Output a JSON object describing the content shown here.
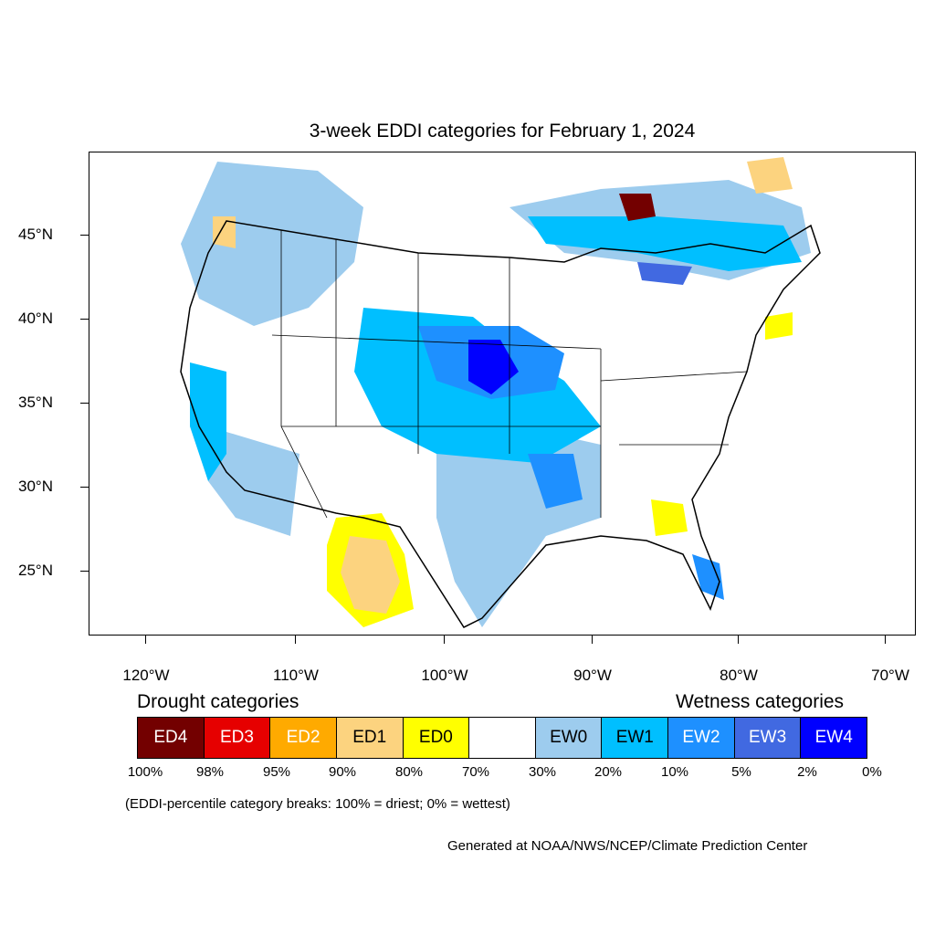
{
  "title": "3-week EDDI categories for February 1, 2024",
  "latitude_labels": [
    "45°N",
    "40°N",
    "35°N",
    "30°N",
    "25°N"
  ],
  "longitude_labels": [
    "120°W",
    "110°W",
    "100°W",
    "90°W",
    "80°W",
    "70°W"
  ],
  "legend": {
    "drought_heading": "Drought categories",
    "wetness_heading": "Wetness categories",
    "categories": [
      {
        "label": "ED4",
        "color": "#730000",
        "text_color": "#ffffff"
      },
      {
        "label": "ED3",
        "color": "#e60000",
        "text_color": "#ffffff"
      },
      {
        "label": "ED2",
        "color": "#ffaa00",
        "text_color": "#ffffff"
      },
      {
        "label": "ED1",
        "color": "#fcd37f",
        "text_color": "#000000"
      },
      {
        "label": "ED0",
        "color": "#ffff00",
        "text_color": "#000000"
      },
      {
        "label": "",
        "color": "#ffffff",
        "text_color": "#000000"
      },
      {
        "label": "EW0",
        "color": "#9dccee",
        "text_color": "#000000"
      },
      {
        "label": "EW1",
        "color": "#00bfff",
        "text_color": "#000000"
      },
      {
        "label": "EW2",
        "color": "#1e90ff",
        "text_color": "#ffffff"
      },
      {
        "label": "EW3",
        "color": "#4169e1",
        "text_color": "#ffffff"
      },
      {
        "label": "EW4",
        "color": "#0000ff",
        "text_color": "#ffffff"
      }
    ],
    "percentile_breaks": [
      "100%",
      "98%",
      "95%",
      "90%",
      "80%",
      "70%",
      "30%",
      "20%",
      "10%",
      "5%",
      "2%",
      "0%"
    ]
  },
  "note": "(EDDI-percentile category breaks: 100% = driest; 0% = wettest)",
  "credit": "Generated at NOAA/NWS/NCEP/Climate Prediction Center"
}
